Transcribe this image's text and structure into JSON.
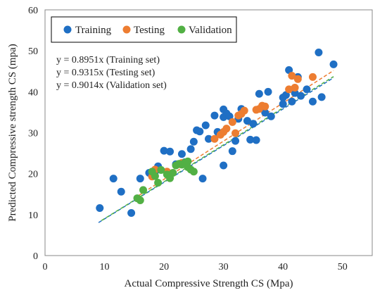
{
  "chart_data": {
    "type": "scatter",
    "xlabel": "Actual Compressive Strength CS (Mpa)",
    "ylabel": "Predicted Compressive strength CS (mpa)",
    "xlim": [
      0,
      55
    ],
    "ylim": [
      0,
      60
    ],
    "x_ticks": [
      0,
      10,
      20,
      30,
      40,
      50
    ],
    "y_ticks": [
      0,
      10,
      20,
      30,
      40,
      50,
      60
    ],
    "grid": false,
    "legend_position": "top-left",
    "equations": [
      "y = 0.8951x (Training set)",
      "y = 0.9315x (Testing set)",
      "y = 0.9014x (Validation set)"
    ],
    "series": [
      {
        "name": "Training",
        "color": "#1f6fc4",
        "slope": 0.8951,
        "trend_x": [
          9,
          48.5
        ],
        "points": [
          [
            9.2,
            11.6
          ],
          [
            11.5,
            18.8
          ],
          [
            12.8,
            15.6
          ],
          [
            14.5,
            10.4
          ],
          [
            16.0,
            18.8
          ],
          [
            17.5,
            20.2
          ],
          [
            18.5,
            20.5
          ],
          [
            19.0,
            21.8
          ],
          [
            20.0,
            25.6
          ],
          [
            21.0,
            25.4
          ],
          [
            22.0,
            22.3
          ],
          [
            23.0,
            24.8
          ],
          [
            23.5,
            22.8
          ],
          [
            24.5,
            26.0
          ],
          [
            25.0,
            27.8
          ],
          [
            25.5,
            30.6
          ],
          [
            26.0,
            30.3
          ],
          [
            26.5,
            18.8
          ],
          [
            27.0,
            31.8
          ],
          [
            27.5,
            28.5
          ],
          [
            28.5,
            34.2
          ],
          [
            29.0,
            30.2
          ],
          [
            30.0,
            35.7
          ],
          [
            30.0,
            33.8
          ],
          [
            30.0,
            22.0
          ],
          [
            30.5,
            34.7
          ],
          [
            31.0,
            34.0
          ],
          [
            31.5,
            25.5
          ],
          [
            32.0,
            28.0
          ],
          [
            32.5,
            33.4
          ],
          [
            33.0,
            35.8
          ],
          [
            34.0,
            32.9
          ],
          [
            34.5,
            28.3
          ],
          [
            35.0,
            32.2
          ],
          [
            35.5,
            28.2
          ],
          [
            36.0,
            39.5
          ],
          [
            37.0,
            34.9
          ],
          [
            37.5,
            40.0
          ],
          [
            38.0,
            34.0
          ],
          [
            40.0,
            37.0
          ],
          [
            40.0,
            38.6
          ],
          [
            40.5,
            39.2
          ],
          [
            41.0,
            45.3
          ],
          [
            41.5,
            37.6
          ],
          [
            42.0,
            39.7
          ],
          [
            42.5,
            43.6
          ],
          [
            43.0,
            39.0
          ],
          [
            44.0,
            40.6
          ],
          [
            45.0,
            37.6
          ],
          [
            46.0,
            49.6
          ],
          [
            46.5,
            38.7
          ],
          [
            48.5,
            46.7
          ]
        ]
      },
      {
        "name": "Testing",
        "color": "#ed7d31",
        "slope": 0.9315,
        "trend_x": [
          15,
          48.5
        ],
        "points": [
          [
            18.0,
            19.3
          ],
          [
            18.5,
            21.0
          ],
          [
            20.5,
            20.5
          ],
          [
            22.5,
            22.3
          ],
          [
            23.0,
            22.6
          ],
          [
            28.5,
            28.5
          ],
          [
            29.5,
            29.5
          ],
          [
            30.0,
            30.2
          ],
          [
            30.5,
            31.0
          ],
          [
            31.5,
            32.6
          ],
          [
            32.0,
            29.9
          ],
          [
            32.5,
            34.2
          ],
          [
            33.0,
            34.6
          ],
          [
            33.5,
            35.4
          ],
          [
            35.5,
            35.6
          ],
          [
            36.0,
            35.8
          ],
          [
            36.5,
            36.6
          ],
          [
            37.0,
            36.4
          ],
          [
            41.0,
            40.6
          ],
          [
            41.5,
            43.9
          ],
          [
            42.0,
            41.0
          ],
          [
            42.5,
            43.1
          ],
          [
            45.0,
            43.6
          ]
        ]
      },
      {
        "name": "Validation",
        "color": "#52b044",
        "slope": 0.9014,
        "trend_x": [
          9.5,
          48.5
        ],
        "points": [
          [
            15.5,
            14.0
          ],
          [
            16.0,
            13.5
          ],
          [
            16.5,
            16.0
          ],
          [
            18.0,
            20.5
          ],
          [
            18.5,
            19.4
          ],
          [
            19.0,
            17.8
          ],
          [
            19.5,
            20.9
          ],
          [
            20.5,
            19.8
          ],
          [
            21.0,
            18.9
          ],
          [
            21.5,
            20.2
          ],
          [
            22.0,
            22.0
          ],
          [
            22.5,
            22.4
          ],
          [
            23.0,
            22.2
          ],
          [
            23.5,
            22.7
          ],
          [
            24.0,
            21.6
          ],
          [
            24.5,
            21.0
          ],
          [
            25.0,
            20.5
          ],
          [
            24.0,
            23.0
          ]
        ]
      }
    ]
  }
}
